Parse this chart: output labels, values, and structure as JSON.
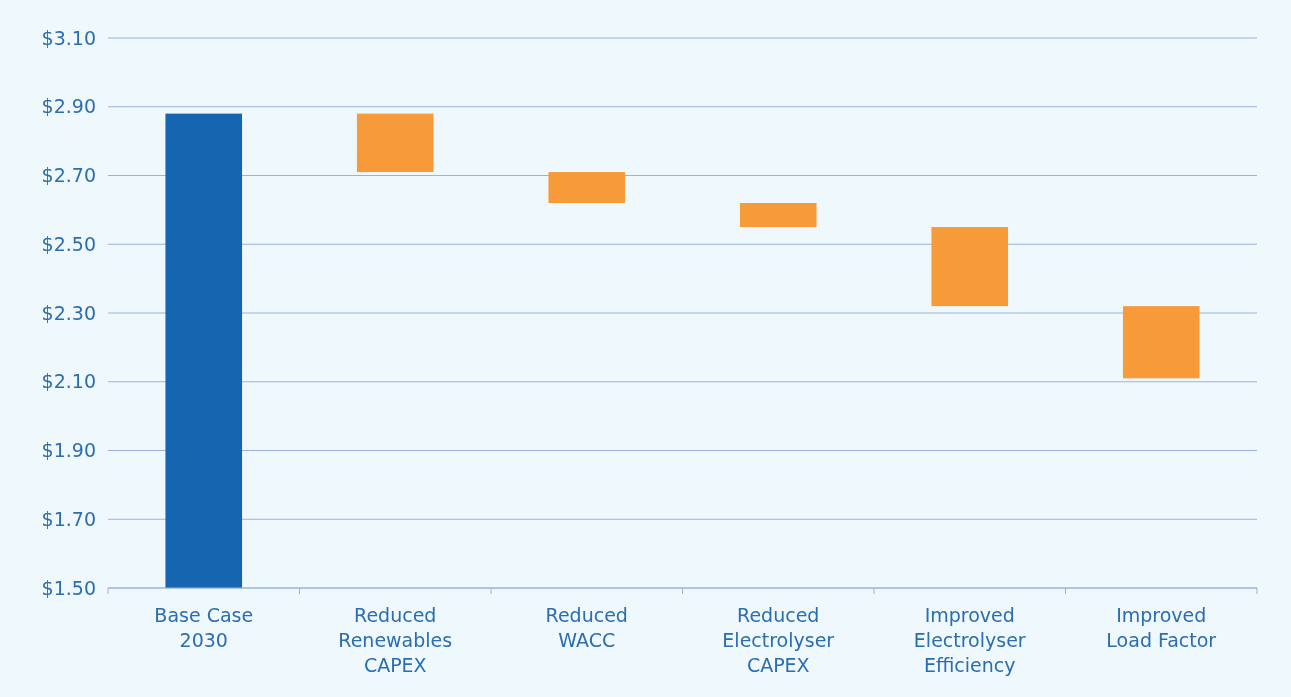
{
  "chart_data": {
    "type": "bar",
    "categories": [
      "Base Case 2030",
      "Reduced Renewables CAPEX",
      "Reduced WACC",
      "Reduced Electrolyser CAPEX",
      "Improved Electrolyser Efficiency",
      "Improved Load Factor"
    ],
    "values": [
      2.88,
      -0.17,
      -0.09,
      -0.07,
      -0.23,
      -0.21
    ],
    "base": [
      null,
      2.88,
      2.71,
      2.62,
      2.55,
      2.32
    ],
    "colors": [
      "#1565b0",
      "#f79a3a",
      "#f79a3a",
      "#f79a3a",
      "#f79a3a",
      "#f79a3a"
    ],
    "ylim": [
      1.5,
      3.1
    ],
    "yticks": [
      {
        "value": 1.5,
        "label": "$1.50"
      },
      {
        "value": 1.7,
        "label": "$1.70"
      },
      {
        "value": 1.9,
        "label": "$1.90"
      },
      {
        "value": 2.1,
        "label": "$2.10"
      },
      {
        "value": 2.3,
        "label": "$2.30"
      },
      {
        "value": 2.5,
        "label": "$2.50"
      },
      {
        "value": 2.7,
        "label": "$2.70"
      },
      {
        "value": 2.9,
        "label": "$2.90"
      },
      {
        "value": 3.1,
        "label": "$3.10"
      }
    ],
    "grid": "y"
  }
}
